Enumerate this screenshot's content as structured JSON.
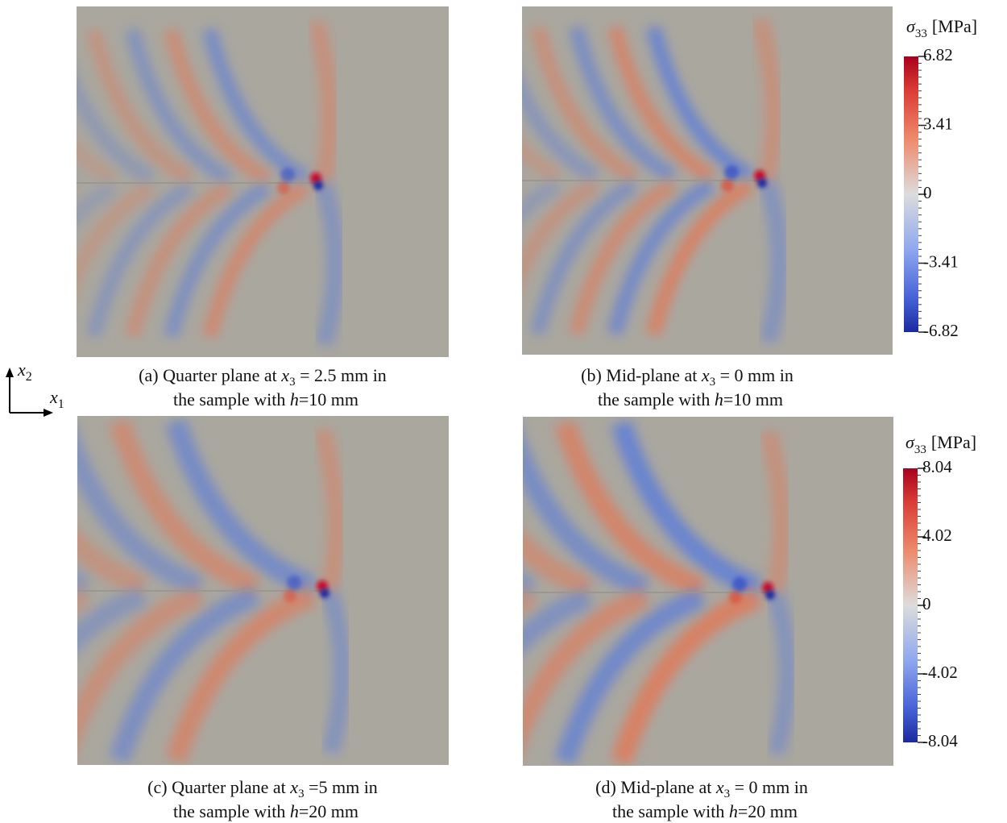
{
  "panels": [
    {
      "caption": {
        "line1": {
          "prefix": "(a) Quarter plane at ",
          "var": "x",
          "sub": "3",
          "suffix": " = 2.5 mm in"
        },
        "line2": {
          "prefix": "the sample with ",
          "var": "h",
          "suffix": "=10 mm"
        }
      }
    },
    {
      "caption": {
        "line1": {
          "prefix": "(b) Mid-plane at ",
          "var": "x",
          "sub": "3",
          "suffix": " = 0 mm in"
        },
        "line2": {
          "prefix": "the sample with ",
          "var": "h",
          "suffix": "=10 mm"
        }
      }
    },
    {
      "caption": {
        "line1": {
          "prefix": "(c) Quarter plane at ",
          "var": "x",
          "sub": "3",
          "suffix": " =5 mm in"
        },
        "line2": {
          "prefix": "the sample with ",
          "var": "h",
          "suffix": "=20 mm"
        }
      }
    },
    {
      "caption": {
        "line1": {
          "prefix": "(d) Mid-plane at ",
          "var": "x",
          "sub": "3",
          "suffix": " = 0 mm in"
        },
        "line2": {
          "prefix": "the sample with ",
          "var": "h",
          "suffix": "=20 mm"
        }
      }
    }
  ],
  "colorbars": [
    {
      "label": {
        "symbol": "σ",
        "sub": "33",
        "unit": "[MPa]"
      },
      "range": [
        -6.82,
        6.82
      ],
      "ticks": [
        6.82,
        3.41,
        0,
        -3.41,
        -6.82
      ]
    },
    {
      "label": {
        "symbol": "σ",
        "sub": "33",
        "unit": "[MPa]"
      },
      "range": [
        -8.04,
        8.04
      ],
      "ticks": [
        8.04,
        4.02,
        0,
        -4.02,
        -8.04
      ]
    }
  ],
  "axes": {
    "x2": {
      "var": "x",
      "sub": "2"
    },
    "x1": {
      "var": "x",
      "sub": "1"
    }
  }
}
